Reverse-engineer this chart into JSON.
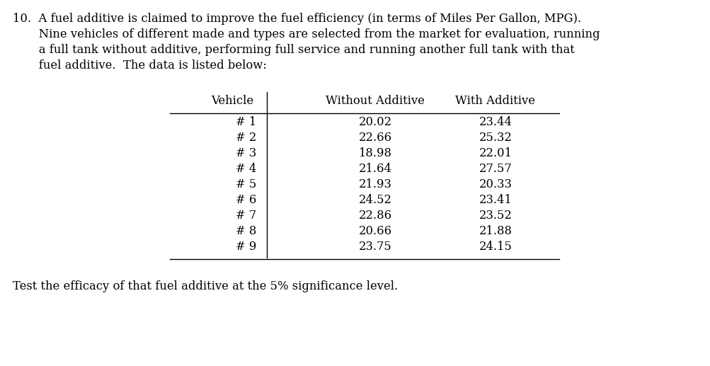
{
  "bg_color": "#ffffff",
  "text_color": "#000000",
  "para_lines": [
    "10.  A fuel additive is claimed to improve the fuel efficiency (in terms of Miles Per Gallon, MPG).",
    "       Nine vehicles of different made and types are selected from the market for evaluation, running",
    "       a full tank without additive, performing full service and running another full tank with that",
    "       fuel additive.  The data is listed below:"
  ],
  "col_headers": [
    "Vehicle",
    "Without Additive",
    "With Additive"
  ],
  "rows": [
    [
      "# 1",
      "20.02",
      "23.44"
    ],
    [
      "# 2",
      "22.66",
      "25.32"
    ],
    [
      "# 3",
      "18.98",
      "22.01"
    ],
    [
      "# 4",
      "21.64",
      "27.57"
    ],
    [
      "# 5",
      "21.93",
      "20.33"
    ],
    [
      "# 6",
      "24.52",
      "23.41"
    ],
    [
      "# 7",
      "22.86",
      "23.52"
    ],
    [
      "# 8",
      "20.66",
      "21.88"
    ],
    [
      "# 9",
      "23.75",
      "24.15"
    ]
  ],
  "footer": "Test the efficacy of that fuel additive at the 5% significance level.",
  "font_size": 11.8,
  "para_font_size": 11.8,
  "footer_font_size": 11.8
}
